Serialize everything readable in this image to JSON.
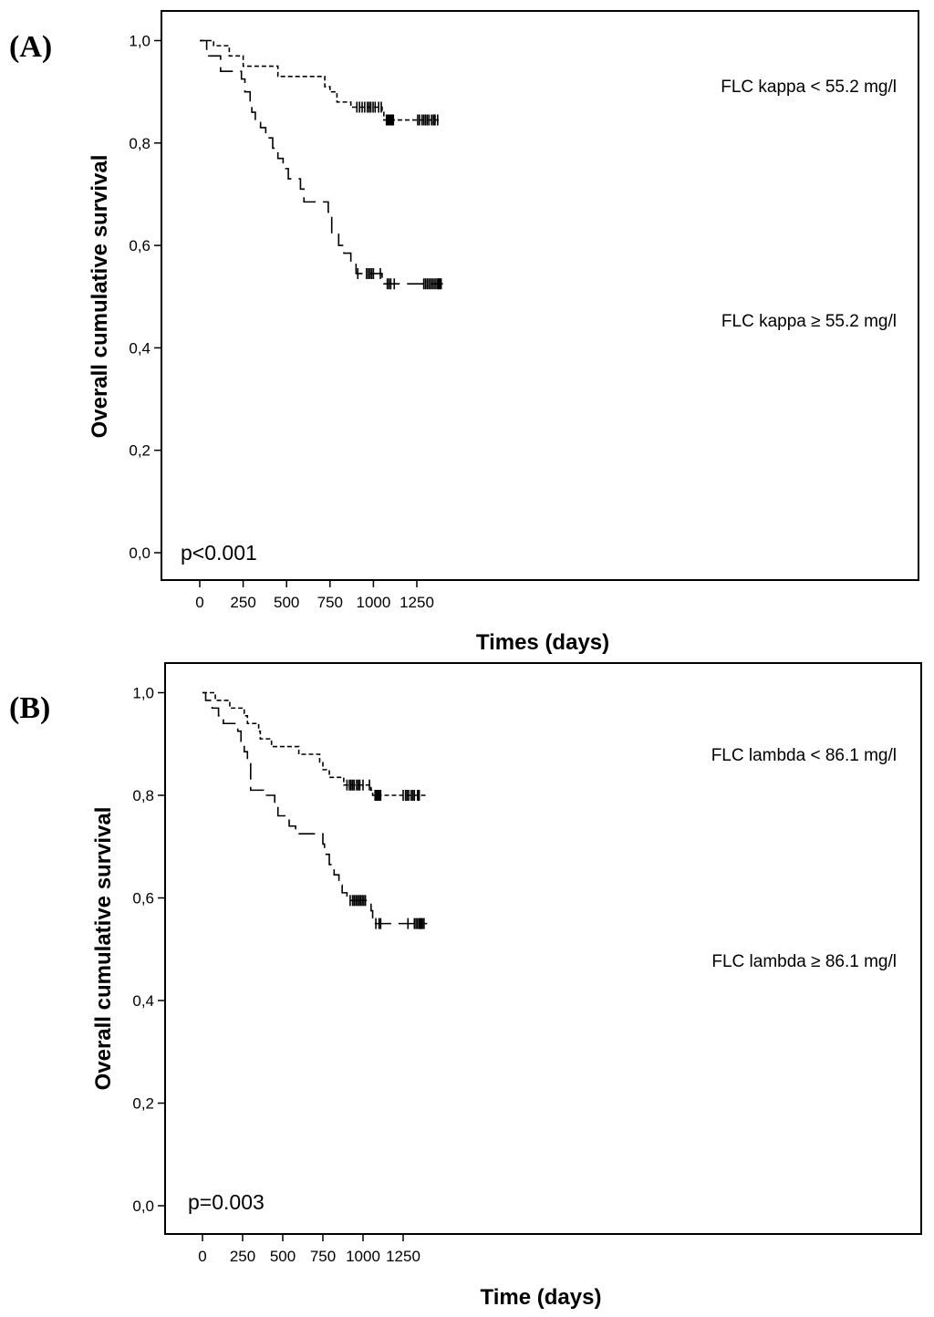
{
  "chart_data": [
    {
      "type": "line",
      "panel_label": "(A)",
      "xlabel": "Times (days)",
      "ylabel": "Overall cumulative survival",
      "xlim": [
        -80,
        1460
      ],
      "ylim": [
        -0.05,
        1.06
      ],
      "x_ticks": [
        0,
        250,
        500,
        750,
        1000,
        1250
      ],
      "y_ticks": [
        0.0,
        0.2,
        0.4,
        0.6,
        0.8,
        1.0
      ],
      "y_tick_labels": [
        "0,0",
        "0,2",
        "0,4",
        "0,6",
        "0,8",
        "1,0"
      ],
      "grid": false,
      "annotation": "p<0.001",
      "series": [
        {
          "name": "FLC kappa < 55.2 mg/l",
          "line_style": "short-dash",
          "steps": [
            [
              0,
              1.0
            ],
            [
              80,
              0.99
            ],
            [
              170,
              0.97
            ],
            [
              250,
              0.95
            ],
            [
              450,
              0.93
            ],
            [
              720,
              0.91
            ],
            [
              750,
              0.9
            ],
            [
              790,
              0.88
            ],
            [
              870,
              0.87
            ],
            [
              1050,
              0.86
            ],
            [
              1060,
              0.845
            ],
            [
              1390,
              0.845
            ]
          ],
          "censored": [
            [
              905,
              0.87
            ],
            [
              920,
              0.87
            ],
            [
              935,
              0.87
            ],
            [
              950,
              0.87
            ],
            [
              965,
              0.87
            ],
            [
              975,
              0.87
            ],
            [
              985,
              0.87
            ],
            [
              998,
              0.87
            ],
            [
              1010,
              0.87
            ],
            [
              1030,
              0.87
            ],
            [
              1045,
              0.87
            ],
            [
              1075,
              0.845
            ],
            [
              1080,
              0.845
            ],
            [
              1085,
              0.845
            ],
            [
              1090,
              0.845
            ],
            [
              1095,
              0.845
            ],
            [
              1100,
              0.845
            ],
            [
              1105,
              0.845
            ],
            [
              1110,
              0.845
            ],
            [
              1115,
              0.845
            ],
            [
              1255,
              0.845
            ],
            [
              1265,
              0.845
            ],
            [
              1280,
              0.845
            ],
            [
              1290,
              0.845
            ],
            [
              1300,
              0.845
            ],
            [
              1310,
              0.845
            ],
            [
              1320,
              0.845
            ],
            [
              1335,
              0.845
            ],
            [
              1345,
              0.845
            ],
            [
              1350,
              0.845
            ],
            [
              1355,
              0.845
            ],
            [
              1370,
              0.845
            ]
          ]
        },
        {
          "name": "FLC kappa ≥ 55.2 mg/l",
          "line_style": "long-dash",
          "steps": [
            [
              0,
              1.0
            ],
            [
              40,
              0.97
            ],
            [
              120,
              0.94
            ],
            [
              240,
              0.925
            ],
            [
              260,
              0.9
            ],
            [
              290,
              0.88
            ],
            [
              300,
              0.86
            ],
            [
              320,
              0.84
            ],
            [
              350,
              0.83
            ],
            [
              380,
              0.81
            ],
            [
              420,
              0.79
            ],
            [
              450,
              0.77
            ],
            [
              480,
              0.75
            ],
            [
              510,
              0.73
            ],
            [
              580,
              0.71
            ],
            [
              600,
              0.685
            ],
            [
              740,
              0.665
            ],
            [
              760,
              0.625
            ],
            [
              800,
              0.6
            ],
            [
              830,
              0.585
            ],
            [
              870,
              0.565
            ],
            [
              900,
              0.545
            ],
            [
              1050,
              0.525
            ],
            [
              1400,
              0.525
            ]
          ],
          "censored": [
            [
              910,
              0.545
            ],
            [
              960,
              0.545
            ],
            [
              970,
              0.545
            ],
            [
              980,
              0.545
            ],
            [
              990,
              0.545
            ],
            [
              1000,
              0.545
            ],
            [
              1040,
              0.545
            ],
            [
              1080,
              0.525
            ],
            [
              1090,
              0.525
            ],
            [
              1100,
              0.525
            ],
            [
              1120,
              0.525
            ],
            [
              1290,
              0.525
            ],
            [
              1300,
              0.525
            ],
            [
              1310,
              0.525
            ],
            [
              1320,
              0.525
            ],
            [
              1330,
              0.525
            ],
            [
              1340,
              0.525
            ],
            [
              1350,
              0.525
            ],
            [
              1360,
              0.525
            ],
            [
              1370,
              0.525
            ],
            [
              1375,
              0.525
            ],
            [
              1380,
              0.525
            ],
            [
              1385,
              0.525
            ],
            [
              1390,
              0.525
            ]
          ]
        }
      ]
    },
    {
      "type": "line",
      "panel_label": "(B)",
      "xlabel": "Time (days)",
      "ylabel": "Overall cumulative survival",
      "xlim": [
        -80,
        1460
      ],
      "ylim": [
        -0.05,
        1.06
      ],
      "x_ticks": [
        0,
        250,
        500,
        750,
        1000,
        1250
      ],
      "y_ticks": [
        0.0,
        0.2,
        0.4,
        0.6,
        0.8,
        1.0
      ],
      "y_tick_labels": [
        "0,0",
        "0,2",
        "0,4",
        "0,6",
        "0,8",
        "1,0"
      ],
      "grid": false,
      "annotation": "p=0.003",
      "series": [
        {
          "name": "FLC lambda < 86.1 mg/l",
          "line_style": "short-dash",
          "steps": [
            [
              0,
              1.0
            ],
            [
              80,
              0.985
            ],
            [
              170,
              0.97
            ],
            [
              260,
              0.955
            ],
            [
              280,
              0.94
            ],
            [
              350,
              0.925
            ],
            [
              360,
              0.91
            ],
            [
              430,
              0.895
            ],
            [
              600,
              0.88
            ],
            [
              730,
              0.865
            ],
            [
              750,
              0.85
            ],
            [
              790,
              0.835
            ],
            [
              880,
              0.82
            ],
            [
              1050,
              0.81
            ],
            [
              1060,
              0.8
            ],
            [
              1390,
              0.8
            ]
          ],
          "censored": [
            [
              900,
              0.82
            ],
            [
              915,
              0.82
            ],
            [
              925,
              0.82
            ],
            [
              935,
              0.82
            ],
            [
              945,
              0.82
            ],
            [
              960,
              0.82
            ],
            [
              970,
              0.82
            ],
            [
              980,
              0.82
            ],
            [
              1000,
              0.82
            ],
            [
              1040,
              0.82
            ],
            [
              1075,
              0.8
            ],
            [
              1080,
              0.8
            ],
            [
              1085,
              0.8
            ],
            [
              1090,
              0.8
            ],
            [
              1095,
              0.8
            ],
            [
              1100,
              0.8
            ],
            [
              1105,
              0.8
            ],
            [
              1110,
              0.8
            ],
            [
              1250,
              0.8
            ],
            [
              1265,
              0.8
            ],
            [
              1275,
              0.8
            ],
            [
              1285,
              0.8
            ],
            [
              1300,
              0.8
            ],
            [
              1310,
              0.8
            ],
            [
              1320,
              0.8
            ],
            [
              1340,
              0.8
            ],
            [
              1345,
              0.8
            ],
            [
              1350,
              0.8
            ]
          ]
        },
        {
          "name": "FLC lambda ≥ 86.1 mg/l",
          "line_style": "long-dash",
          "steps": [
            [
              0,
              1.0
            ],
            [
              20,
              0.985
            ],
            [
              60,
              0.97
            ],
            [
              100,
              0.955
            ],
            [
              130,
              0.94
            ],
            [
              220,
              0.925
            ],
            [
              240,
              0.905
            ],
            [
              260,
              0.885
            ],
            [
              280,
              0.865
            ],
            [
              300,
              0.83
            ],
            [
              300,
              0.81
            ],
            [
              380,
              0.8
            ],
            [
              450,
              0.78
            ],
            [
              470,
              0.76
            ],
            [
              540,
              0.74
            ],
            [
              580,
              0.725
            ],
            [
              750,
              0.705
            ],
            [
              760,
              0.685
            ],
            [
              790,
              0.665
            ],
            [
              820,
              0.645
            ],
            [
              850,
              0.625
            ],
            [
              870,
              0.61
            ],
            [
              900,
              0.595
            ],
            [
              1050,
              0.575
            ],
            [
              1060,
              0.55
            ],
            [
              1400,
              0.55
            ]
          ],
          "censored": [
            [
              920,
              0.595
            ],
            [
              935,
              0.595
            ],
            [
              945,
              0.595
            ],
            [
              955,
              0.595
            ],
            [
              965,
              0.595
            ],
            [
              975,
              0.595
            ],
            [
              985,
              0.595
            ],
            [
              995,
              0.595
            ],
            [
              1005,
              0.595
            ],
            [
              1015,
              0.595
            ],
            [
              1080,
              0.55
            ],
            [
              1100,
              0.55
            ],
            [
              1110,
              0.55
            ],
            [
              1280,
              0.55
            ],
            [
              1320,
              0.55
            ],
            [
              1330,
              0.55
            ],
            [
              1340,
              0.55
            ],
            [
              1350,
              0.55
            ],
            [
              1355,
              0.55
            ],
            [
              1360,
              0.55
            ],
            [
              1365,
              0.55
            ],
            [
              1370,
              0.55
            ],
            [
              1380,
              0.55
            ]
          ]
        }
      ]
    }
  ]
}
